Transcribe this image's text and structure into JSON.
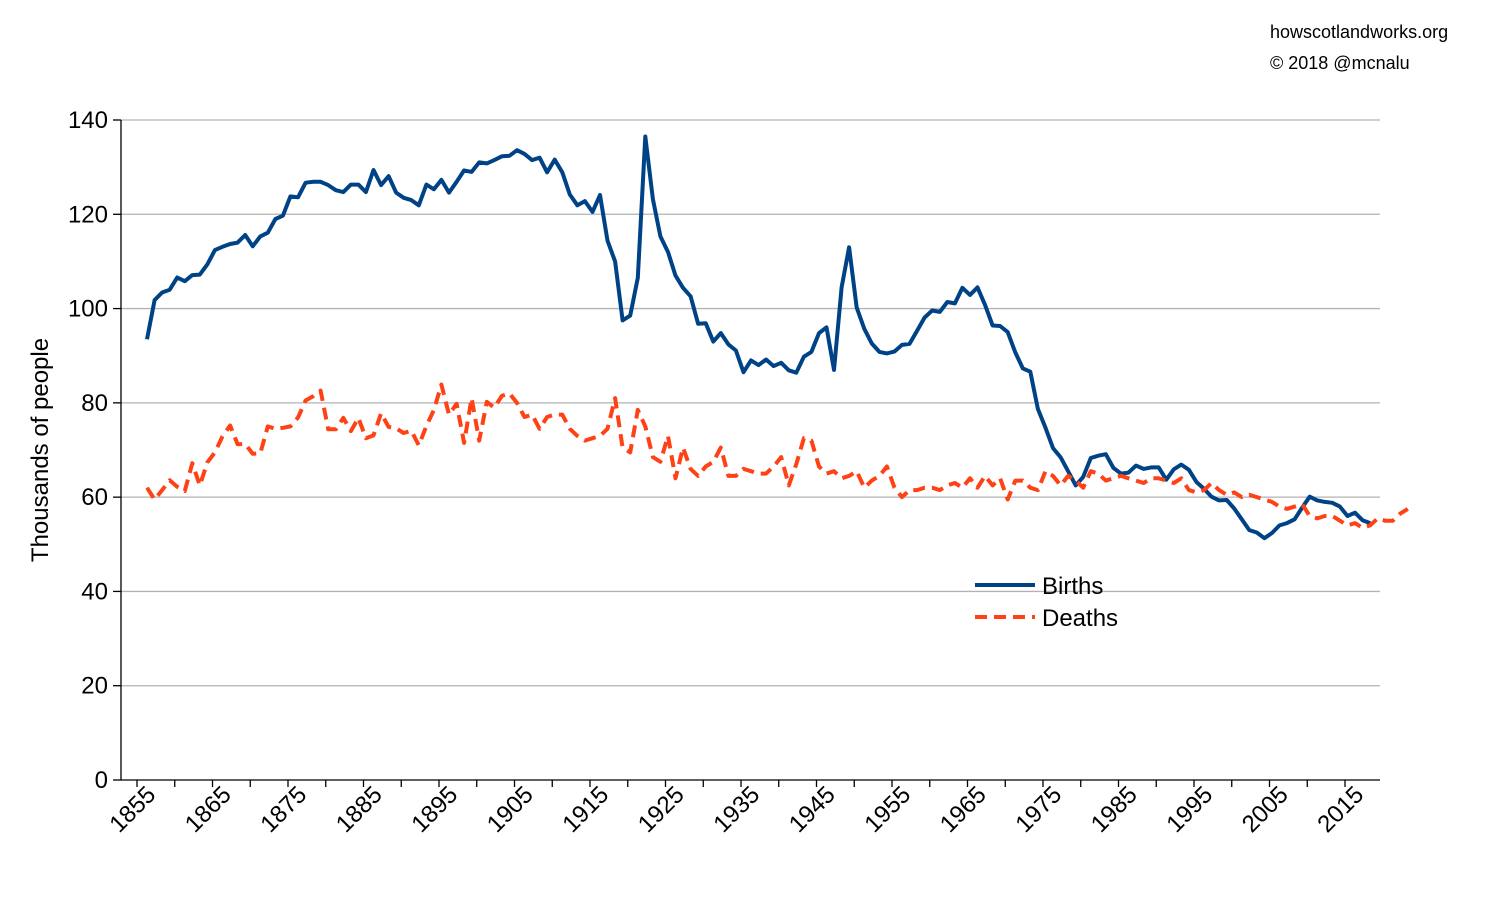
{
  "credit": {
    "site": "howscotlandworks.org",
    "copyright": "© 2018  @mcnalu"
  },
  "colors": {
    "births": "#004286",
    "deaths": "#ff4215",
    "grid": "#b3b3b3",
    "axis": "#000000"
  },
  "chart_data": {
    "type": "line",
    "title": "",
    "xlabel": "",
    "ylabel": "Thousands of people",
    "xlim": [
      1855,
      2015
    ],
    "ylim": [
      0,
      140
    ],
    "yticks": [
      0,
      20,
      40,
      60,
      80,
      100,
      120,
      140
    ],
    "xtick_labels": [
      "1855",
      "1865",
      "1875",
      "1885",
      "1895",
      "1905",
      "1915",
      "1925",
      "1935",
      "1945",
      "1955",
      "1965",
      "1975",
      "1985",
      "1995",
      "2005",
      "2015"
    ],
    "grid": true,
    "legend": "center-right",
    "x_start": 1855,
    "series": [
      {
        "name": "Births",
        "style": "solid",
        "values": [
          93.5,
          101.8,
          103.4,
          104.0,
          106.6,
          105.8,
          107.1,
          107.2,
          109.4,
          112.4,
          113.1,
          113.7,
          114.0,
          115.6,
          113.2,
          115.3,
          116.1,
          119.0,
          119.7,
          123.8,
          123.6,
          126.7,
          126.9,
          126.9,
          126.2,
          125.1,
          124.7,
          126.3,
          126.3,
          124.7,
          129.4,
          126.2,
          128.1,
          124.6,
          123.5,
          123.0,
          121.9,
          126.3,
          125.3,
          127.3,
          124.6,
          126.9,
          129.3,
          129.0,
          131.0,
          130.8,
          131.5,
          132.3,
          132.4,
          133.6,
          132.8,
          131.5,
          132.0,
          128.9,
          131.6,
          128.9,
          124.2,
          121.9,
          122.8,
          120.5,
          124.1,
          114.4,
          110.0,
          97.5,
          98.5,
          106.5,
          136.5,
          123.2,
          115.3,
          112.0,
          107.0,
          104.4,
          102.6,
          96.8,
          96.9,
          93.0,
          94.8,
          92.4,
          91.1,
          86.5,
          89.0,
          88.0,
          89.2,
          87.8,
          88.5,
          86.9,
          86.4,
          89.8,
          90.8,
          94.8,
          96.0,
          87.0,
          104.5,
          113.0,
          100.2,
          95.7,
          92.6,
          90.8,
          90.5,
          90.9,
          92.3,
          92.5,
          95.3,
          98.1,
          99.6,
          99.3,
          101.4,
          101.1,
          104.4,
          102.9,
          104.5,
          100.8,
          96.4,
          96.3,
          95.0,
          90.7,
          87.3,
          86.6,
          78.7,
          74.7,
          70.4,
          68.5,
          65.5,
          62.5,
          64.3,
          68.3,
          68.8,
          69.1,
          66.2,
          65.0,
          65.2,
          66.7,
          66.0,
          66.3,
          66.3,
          63.7,
          65.9,
          66.9,
          65.8,
          63.2,
          61.8,
          60.1,
          59.3,
          59.4,
          57.6,
          55.3,
          53.0,
          52.5,
          51.3,
          52.4,
          54.0,
          54.5,
          55.3,
          57.8,
          60.1,
          59.3,
          59.0,
          58.8,
          58.0,
          56.0,
          56.7,
          55.1,
          54.5
        ]
      },
      {
        "name": "Deaths",
        "style": "dashed",
        "values": [
          62.0,
          59.5,
          61.5,
          63.6,
          62.2,
          61.3,
          67.2,
          62.5,
          67.4,
          69.5,
          72.9,
          75.2,
          71.2,
          71.3,
          69.2,
          69.3,
          75.0,
          74.5,
          74.7,
          75.0,
          76.9,
          80.5,
          81.4,
          82.6,
          74.4,
          74.4,
          76.8,
          74.0,
          76.8,
          72.5,
          73.1,
          77.8,
          74.9,
          74.6,
          73.6,
          74.1,
          71.0,
          75.1,
          78.5,
          83.9,
          77.5,
          79.8,
          71.5,
          81.0,
          72.0,
          80.2,
          79.0,
          81.5,
          82.0,
          80.0,
          77.0,
          77.5,
          74.5,
          77.0,
          77.5,
          77.5,
          74.5,
          73.0,
          72.0,
          72.5,
          73.0,
          74.5,
          81.0,
          70.5,
          69.5,
          78.5,
          75.0,
          68.5,
          67.5,
          73.0,
          64.0,
          70.5,
          66.0,
          64.5,
          66.5,
          67.5,
          70.5,
          64.5,
          64.5,
          66.0,
          65.5,
          65.0,
          65.0,
          66.5,
          68.5,
          62.5,
          67.0,
          72.5,
          72.0,
          66.5,
          65.0,
          65.5,
          64.0,
          64.5,
          65.5,
          62.0,
          63.5,
          64.5,
          66.5,
          62.0,
          60.0,
          61.5,
          61.5,
          62.0,
          62.0,
          61.5,
          62.5,
          63.0,
          62.0,
          64.0,
          62.0,
          64.5,
          62.5,
          64.0,
          59.5,
          63.5,
          63.5,
          62.0,
          61.5,
          65.5,
          64.5,
          62.5,
          64.5,
          63.5,
          62.0,
          65.5,
          65.0,
          63.5,
          64.0,
          64.5,
          64.0,
          63.5,
          63.0,
          64.0,
          64.0,
          63.5,
          63.0,
          64.0,
          61.5,
          61.0,
          61.5,
          63.0,
          61.5,
          60.5,
          61.0,
          60.0,
          60.5,
          60.0,
          59.5,
          59.0,
          58.0,
          57.5,
          58.0,
          58.5,
          56.0,
          55.5,
          56.0,
          56.0,
          55.0,
          54.0,
          54.5,
          53.5,
          54.0,
          55.5,
          55.0,
          55.0,
          56.5,
          57.5
        ]
      }
    ]
  }
}
